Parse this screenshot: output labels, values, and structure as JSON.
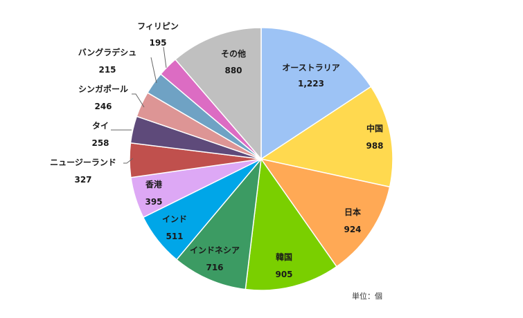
{
  "chart_data": {
    "type": "pie",
    "unit_note": "単位：個",
    "slices": [
      {
        "label": "オーストラリア",
        "value": 1223,
        "value_label": "1,223",
        "color": "#9DC3F5"
      },
      {
        "label": "中国",
        "value": 988,
        "value_label": "988",
        "color": "#FFD94F"
      },
      {
        "label": "日本",
        "value": 924,
        "value_label": "924",
        "color": "#FFA955"
      },
      {
        "label": "韓国",
        "value": 905,
        "value_label": "905",
        "color": "#7ACF00"
      },
      {
        "label": "インドネシア",
        "value": 716,
        "value_label": "716",
        "color": "#3C9B63"
      },
      {
        "label": "インド",
        "value": 511,
        "value_label": "511",
        "color": "#00A6E8"
      },
      {
        "label": "香港",
        "value": 395,
        "value_label": "395",
        "color": "#DDA8F5"
      },
      {
        "label": "ニュージーランド",
        "value": 327,
        "value_label": "327",
        "color": "#C0504D"
      },
      {
        "label": "タイ",
        "value": 258,
        "value_label": "258",
        "color": "#5E4A7A"
      },
      {
        "label": "シンガポール",
        "value": 246,
        "value_label": "246",
        "color": "#DD9595"
      },
      {
        "label": "バングラデシュ",
        "value": 215,
        "value_label": "215",
        "color": "#6FA2C4"
      },
      {
        "label": "フィリピン",
        "value": 195,
        "value_label": "195",
        "color": "#DC6CC3"
      },
      {
        "label": "その他",
        "value": 880,
        "value_label": "880",
        "color": "#C0C0C0"
      }
    ]
  }
}
